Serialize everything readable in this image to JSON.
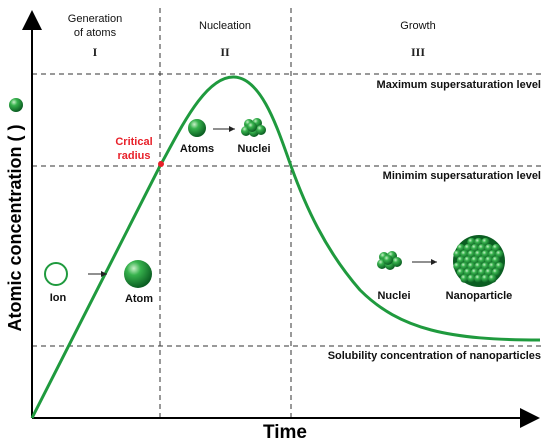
{
  "stages": [
    {
      "title_line1": "Generation",
      "title_line2": "of atoms",
      "numeral": "I"
    },
    {
      "title_line1": "Nucleation",
      "title_line2": "",
      "numeral": "II"
    },
    {
      "title_line1": "Growth",
      "title_line2": "",
      "numeral": "III"
    }
  ],
  "levels": {
    "maximum": "Maximum supersaturation level",
    "minimum": "Minimim supersaturation level",
    "solubility": "Solubility concentration of nanoparticles"
  },
  "axes": {
    "y_title": "Atomic concentration (   )",
    "x_title": "Time"
  },
  "critical": {
    "line1": "Critical",
    "line2": "radius"
  },
  "labels": {
    "ion": "Ion",
    "atom": "Atom",
    "atoms": "Atoms",
    "nuclei_nucleation": "Nuclei",
    "nuclei_growth": "Nuclei",
    "nanoparticle": "Nanoparticle"
  },
  "colors": {
    "curve": "#1f9a3e",
    "sphere": "#2aa34a",
    "critical": "#e8212a",
    "dashed": "#333333"
  }
}
